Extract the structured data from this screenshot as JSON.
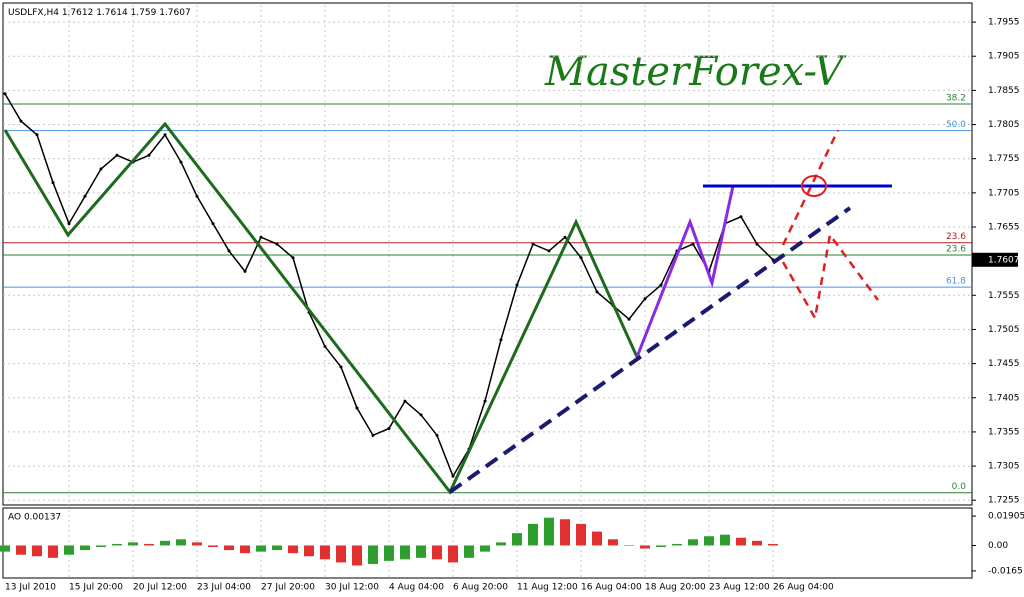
{
  "header": {
    "symbol": "USDLFX,H4",
    "open": 1.7612,
    "high": 1.7614,
    "low": 1.759,
    "close": 1.7607
  },
  "watermark": "MasterForex-V",
  "price_axis": {
    "ylim": [
      1.7248,
      1.798
    ],
    "ticks": [
      1.7955,
      1.7905,
      1.7855,
      1.7805,
      1.7755,
      1.7705,
      1.7655,
      1.7555,
      1.7505,
      1.7455,
      1.7405,
      1.7355,
      1.7305,
      1.7255
    ]
  },
  "time_axis": {
    "labels": [
      "13 Jul 2010",
      "15 Jul 20:00",
      "20 Jul 12:00",
      "23 Jul 04:00",
      "27 Jul 20:00",
      "30 Jul 12:00",
      "4 Aug 04:00",
      "6 Aug 20:00",
      "11 Aug 12:00",
      "16 Aug 04:00",
      "18 Aug 20:00",
      "23 Aug 12:00",
      "26 Aug 04:00"
    ]
  },
  "fib_levels": [
    {
      "label": "38.2",
      "value": 1.7835,
      "color": "#2e7d32"
    },
    {
      "label": "50.0",
      "value": 1.7796,
      "color": "#4a90e2"
    },
    {
      "label": "23.6",
      "value": 1.7632,
      "color": "#b22222"
    },
    {
      "label": "23.6",
      "value": 1.7614,
      "color": "#2e7d32"
    },
    {
      "label": "61.8",
      "value": 1.7567,
      "color": "#4a90e2"
    },
    {
      "label": "0.0",
      "value": 1.7266,
      "color": "#2e7d32"
    }
  ],
  "price_series": {
    "color": "#000000",
    "values": [
      1.785,
      1.781,
      1.779,
      1.772,
      1.766,
      1.77,
      1.774,
      1.776,
      1.775,
      1.776,
      1.779,
      1.775,
      1.77,
      1.766,
      1.762,
      1.759,
      1.764,
      1.763,
      1.761,
      1.753,
      1.748,
      1.745,
      1.739,
      1.735,
      1.736,
      1.74,
      1.738,
      1.735,
      1.729,
      1.733,
      1.74,
      1.749,
      1.757,
      1.763,
      1.762,
      1.764,
      1.761,
      1.756,
      1.754,
      1.752,
      1.755,
      1.757,
      1.762,
      1.763,
      1.759,
      1.766,
      1.767,
      1.763,
      1.7607
    ]
  },
  "ao": {
    "title": "AO 0.00137",
    "ylim": [
      -0.0211,
      0.0243
    ],
    "ticks": [
      0.01905,
      {
        "value": 0,
        "label": "0.00"
      },
      -0.0165
    ],
    "up_color": "#2e9e2e",
    "down_color": "#e03030",
    "values": [
      -0.004,
      -0.006,
      -0.007,
      -0.008,
      -0.006,
      -0.003,
      -0.001,
      0.001,
      0.002,
      0.001,
      0.003,
      0.004,
      0.002,
      -0.001,
      -0.003,
      -0.005,
      -0.004,
      -0.003,
      -0.005,
      -0.007,
      -0.009,
      -0.011,
      -0.013,
      -0.012,
      -0.01,
      -0.009,
      -0.008,
      -0.009,
      -0.011,
      -0.008,
      -0.004,
      0.002,
      0.008,
      0.014,
      0.018,
      0.017,
      0.014,
      0.009,
      0.004,
      0,
      -0.002,
      -0.001,
      0.001,
      0.004,
      0.006,
      0.007,
      0.005,
      0.003,
      0.001
    ]
  }
}
